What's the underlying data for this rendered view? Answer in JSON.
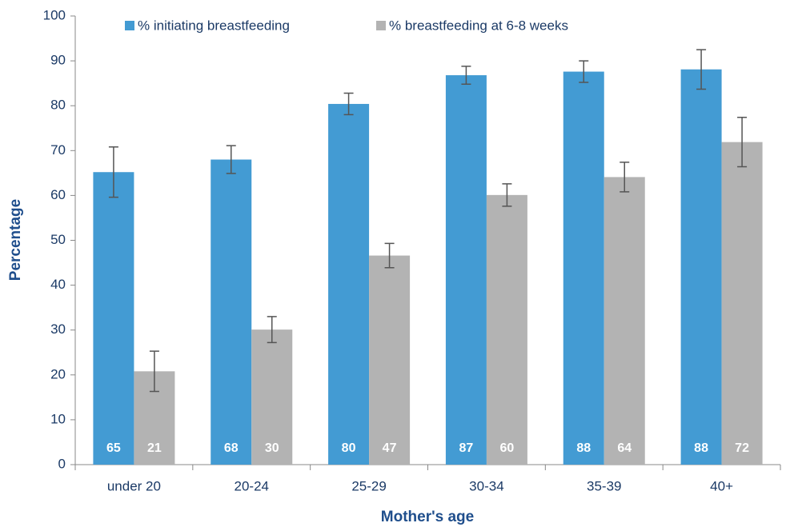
{
  "chart_data": {
    "type": "bar",
    "x_label": "Mother's age",
    "y_label": "Percentage",
    "categories": [
      "under 20",
      "20-24",
      "25-29",
      "30-34",
      "35-39",
      "40+"
    ],
    "series": [
      {
        "name": "% initiating breastfeeding",
        "color": "#439bd3",
        "values": [
          65.2,
          68.0,
          80.4,
          86.8,
          87.6,
          88.1
        ],
        "value_labels": [
          "65",
          "68",
          "80",
          "87",
          "88",
          "88"
        ],
        "errors": [
          5.6,
          3.1,
          2.4,
          2.0,
          2.4,
          4.4
        ]
      },
      {
        "name": "% breastfeeding at 6-8 weeks",
        "color": "#b3b3b3",
        "values": [
          20.8,
          30.1,
          46.6,
          60.1,
          64.1,
          71.9
        ],
        "value_labels": [
          "21",
          "30",
          "47",
          "60",
          "64",
          "72"
        ],
        "errors": [
          4.5,
          2.9,
          2.7,
          2.5,
          3.3,
          5.5
        ]
      }
    ],
    "ylim": [
      0,
      100
    ],
    "yticks": [
      0,
      10,
      20,
      30,
      40,
      50,
      60,
      70,
      80,
      90,
      100
    ],
    "grid": false,
    "legend": "top"
  }
}
